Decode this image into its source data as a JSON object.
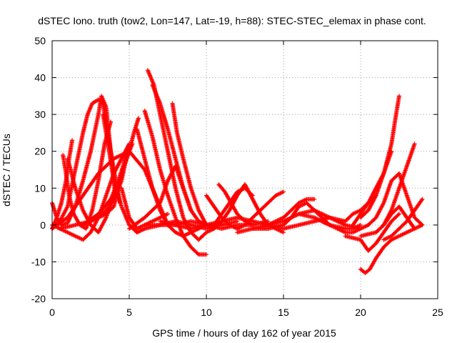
{
  "chart_data": {
    "type": "scatter",
    "title": "dSTEC Iono. truth (tow2, Lon=147, Lat=-19, h=88): STEC-STEC_elemax in phase cont.",
    "xlabel": "GPS time / hours of day 162 of year 2015",
    "ylabel": "dSTEC  / TECUs",
    "xlim": [
      0,
      25
    ],
    "ylim": [
      -20,
      50
    ],
    "xticks": [
      0,
      5,
      10,
      15,
      20,
      25
    ],
    "yticks": [
      -20,
      -10,
      0,
      10,
      20,
      30,
      40,
      50
    ],
    "xtick_labels": [
      "0",
      "5",
      "10",
      "15",
      "20",
      "25"
    ],
    "ytick_labels": [
      "-20",
      "-10",
      "0",
      "10",
      "20",
      "30",
      "40",
      "50"
    ],
    "grid": true,
    "marker": "+",
    "series_color": "#ff0000",
    "series": [
      {
        "x": [
          0.0,
          0.3,
          0.6,
          1.0,
          1.5,
          2.0,
          2.5,
          3.0,
          3.2,
          3.5,
          3.8,
          4.1
        ],
        "y": [
          6,
          2,
          0,
          0.5,
          5,
          12,
          20,
          30,
          35,
          32,
          20,
          8
        ]
      },
      {
        "x": [
          0.0,
          0.5,
          1.0,
          1.5,
          2.0,
          2.3,
          2.6,
          3.0,
          3.3,
          3.6,
          4.0,
          4.4
        ],
        "y": [
          -1,
          1,
          5,
          15,
          25,
          30,
          33,
          34,
          33,
          25,
          15,
          6
        ]
      },
      {
        "x": [
          0.7,
          0.9,
          1.1,
          1.4,
          1.8,
          2.2,
          2.6,
          3.0,
          3.4,
          3.8
        ],
        "y": [
          19,
          14,
          8,
          3,
          0,
          -1,
          4,
          12,
          22,
          28
        ]
      },
      {
        "x": [
          1.0,
          1.2,
          1.5,
          2.0,
          2.5,
          3.0,
          3.5,
          4.0
        ],
        "y": [
          18,
          15,
          10,
          4,
          0,
          -2,
          2,
          8
        ]
      },
      {
        "x": [
          1.3,
          1.1,
          0.9,
          0.6,
          0.3,
          0.0
        ],
        "y": [
          23,
          18,
          12,
          6,
          2,
          -1
        ]
      },
      {
        "x": [
          0.0,
          0.5,
          1.0,
          1.5,
          2.0,
          2.5,
          3.0,
          3.5,
          4.0,
          4.5,
          5.0
        ],
        "y": [
          0,
          -1,
          -2,
          -3,
          -4,
          -2,
          2,
          8,
          14,
          18,
          22
        ]
      },
      {
        "x": [
          0.0,
          1.0,
          2.0,
          3.0,
          4.0,
          5.0,
          6.0,
          7.0,
          7.5
        ],
        "y": [
          -1,
          2,
          8,
          14,
          18,
          20,
          15,
          5,
          0
        ]
      },
      {
        "x": [
          0.5,
          1.5,
          2.5,
          3.5,
          4.0,
          4.3,
          4.6,
          5.0,
          5.3,
          5.6
        ],
        "y": [
          -1,
          0,
          1,
          3,
          5,
          10,
          15,
          20,
          25,
          29
        ]
      },
      {
        "x": [
          3.0,
          3.5,
          4.0,
          4.5,
          4.8,
          5.0,
          5.2
        ],
        "y": [
          2,
          4,
          7,
          12,
          18,
          20,
          22
        ]
      },
      {
        "x": [
          2.0,
          3.0,
          3.8,
          4.3,
          4.6,
          5.0
        ],
        "y": [
          0,
          3,
          7,
          12,
          16,
          22
        ]
      },
      {
        "x": [
          3.3,
          3.7,
          4.0,
          4.5,
          5.0,
          5.5,
          6.0
        ],
        "y": [
          30,
          20,
          12,
          5,
          0,
          -2,
          -1
        ]
      },
      {
        "x": [
          4.5,
          5.0,
          5.5,
          6.0,
          6.5,
          7.0,
          7.5
        ],
        "y": [
          10,
          2,
          -1,
          0,
          1,
          2,
          3
        ]
      },
      {
        "x": [
          6.2,
          6.6,
          7.0,
          7.5,
          8.0,
          8.5,
          9.0,
          9.5,
          10.0
        ],
        "y": [
          42,
          38,
          30,
          20,
          10,
          2,
          -2,
          -4,
          -2
        ]
      },
      {
        "x": [
          6.5,
          7.0,
          7.5,
          8.0,
          8.5,
          9.0,
          9.5,
          10.0,
          10.5
        ],
        "y": [
          38,
          33,
          26,
          18,
          10,
          4,
          1,
          0,
          0
        ]
      },
      {
        "x": [
          6.0,
          6.5,
          7.0,
          7.5,
          8.0,
          8.5,
          9.0,
          9.5,
          10.0
        ],
        "y": [
          31,
          24,
          15,
          8,
          2,
          -3,
          -6,
          -8,
          -8
        ]
      },
      {
        "x": [
          5.5,
          6.0,
          6.5,
          7.0,
          7.5,
          8.0,
          8.5,
          9.0,
          9.5,
          10.0
        ],
        "y": [
          26,
          18,
          10,
          4,
          0,
          -2,
          -3,
          -2,
          -1,
          0
        ]
      },
      {
        "x": [
          7.8,
          8.1,
          8.5,
          9.0,
          9.5,
          10.0,
          10.5
        ],
        "y": [
          33,
          25,
          18,
          10,
          4,
          0,
          -1
        ]
      },
      {
        "x": [
          5.0,
          6.0,
          7.0,
          7.5,
          8.0,
          8.5,
          9.0
        ],
        "y": [
          -1,
          2,
          6,
          12,
          16,
          10,
          4
        ]
      },
      {
        "x": [
          5.5,
          6.0,
          7.0,
          8.0,
          9.0,
          10.0,
          11.0,
          12.0
        ],
        "y": [
          -2,
          -1,
          0,
          1,
          0,
          -1,
          0,
          1
        ]
      },
      {
        "x": [
          6.0,
          7.0,
          8.0,
          9.0,
          10.0,
          11.0,
          12.0,
          13.0,
          14.0
        ],
        "y": [
          0,
          0,
          0,
          1,
          0,
          -1,
          0,
          0,
          1
        ]
      },
      {
        "x": [
          7.0,
          8.0,
          9.0,
          10.0,
          11.0,
          12.0,
          13.0,
          14.0,
          15.0
        ],
        "y": [
          1,
          0,
          -1,
          0,
          1,
          2,
          1,
          0,
          -1
        ]
      },
      {
        "x": [
          10.0,
          10.5,
          11.0,
          11.5,
          12.0
        ],
        "y": [
          8,
          5,
          2,
          0,
          -1
        ]
      },
      {
        "x": [
          10.8,
          11.2,
          11.6,
          12.0,
          12.5,
          13.0
        ],
        "y": [
          11,
          9,
          6,
          3,
          1,
          0
        ]
      },
      {
        "x": [
          10.0,
          10.5,
          11.0,
          11.5,
          12.0,
          12.5
        ],
        "y": [
          -2,
          -1,
          1,
          4,
          8,
          11
        ]
      },
      {
        "x": [
          12.5,
          13.0,
          13.5,
          14.0,
          14.5,
          15.0
        ],
        "y": [
          11,
          7,
          3,
          0,
          -1,
          -2
        ]
      },
      {
        "x": [
          10.5,
          11.0,
          11.5,
          12.0,
          12.5,
          13.0
        ],
        "y": [
          0,
          3,
          6,
          9,
          10,
          8
        ]
      },
      {
        "x": [
          12.0,
          12.5,
          13.0,
          13.5,
          14.0,
          14.5,
          15.0
        ],
        "y": [
          -1,
          0,
          2,
          4,
          6,
          8,
          9
        ]
      },
      {
        "x": [
          12.0,
          13.0,
          14.0,
          15.0,
          16.0,
          17.0,
          18.0,
          19.0
        ],
        "y": [
          -2,
          -1,
          0,
          1,
          3,
          4,
          2,
          1
        ]
      },
      {
        "x": [
          13.0,
          14.0,
          15.0,
          15.5,
          16.0,
          16.5,
          17.0,
          17.5,
          18.0
        ],
        "y": [
          -1,
          -1,
          0,
          2,
          5,
          6,
          4,
          2,
          0
        ]
      },
      {
        "x": [
          14.0,
          15.0,
          15.5,
          16.0,
          16.5,
          17.0
        ],
        "y": [
          0,
          2,
          4,
          6,
          7,
          7
        ]
      },
      {
        "x": [
          15.0,
          16.0,
          17.0,
          18.0,
          19.0,
          20.0
        ],
        "y": [
          -1,
          0,
          1,
          2,
          0,
          -1
        ]
      },
      {
        "x": [
          16.0,
          17.0,
          18.0,
          19.0,
          19.5,
          20.0
        ],
        "y": [
          3,
          2,
          0,
          -1,
          -1,
          0
        ]
      },
      {
        "x": [
          17.5,
          18.0,
          18.5,
          19.0,
          19.5,
          20.0,
          20.5
        ],
        "y": [
          1,
          0,
          -1,
          -2,
          -2,
          -1,
          0
        ]
      },
      {
        "x": [
          19.0,
          19.5,
          20.0,
          20.5,
          21.0
        ],
        "y": [
          1,
          3,
          4,
          6,
          8
        ]
      },
      {
        "x": [
          19.0,
          20.0,
          20.5,
          21.0,
          21.5,
          22.0,
          22.5
        ],
        "y": [
          -3,
          -4,
          -7,
          -5,
          -2,
          1,
          3
        ]
      },
      {
        "x": [
          20.0,
          20.3,
          20.6,
          21.0,
          21.5,
          22.0,
          22.5,
          23.0,
          23.5,
          24.0
        ],
        "y": [
          -12,
          -13,
          -12,
          -9,
          -6,
          -4,
          -3,
          -2,
          -1,
          0
        ]
      },
      {
        "x": [
          20.0,
          20.5,
          21.0,
          21.5,
          22.0,
          22.3,
          22.5
        ],
        "y": [
          2,
          4,
          8,
          14,
          22,
          30,
          35
        ]
      },
      {
        "x": [
          20.5,
          21.0,
          21.5,
          22.0,
          22.5,
          23.0,
          23.5,
          24.0
        ],
        "y": [
          0,
          2,
          6,
          12,
          14,
          8,
          2,
          0
        ]
      },
      {
        "x": [
          19.5,
          20.0,
          20.5,
          21.0,
          21.5,
          22.0
        ],
        "y": [
          0,
          3,
          6,
          10,
          14,
          20
        ]
      },
      {
        "x": [
          21.0,
          21.5,
          22.0,
          22.5,
          23.0,
          23.5
        ],
        "y": [
          -2,
          0,
          4,
          10,
          16,
          22
        ]
      },
      {
        "x": [
          21.5,
          22.0,
          22.5,
          23.0,
          23.5,
          24.0
        ],
        "y": [
          -4,
          -3,
          -1,
          1,
          4,
          7
        ]
      },
      {
        "x": [
          20.0,
          21.0,
          21.5,
          22.0,
          22.5,
          23.0,
          23.5
        ],
        "y": [
          -3,
          -2,
          0,
          3,
          5,
          2,
          -1
        ]
      }
    ]
  }
}
